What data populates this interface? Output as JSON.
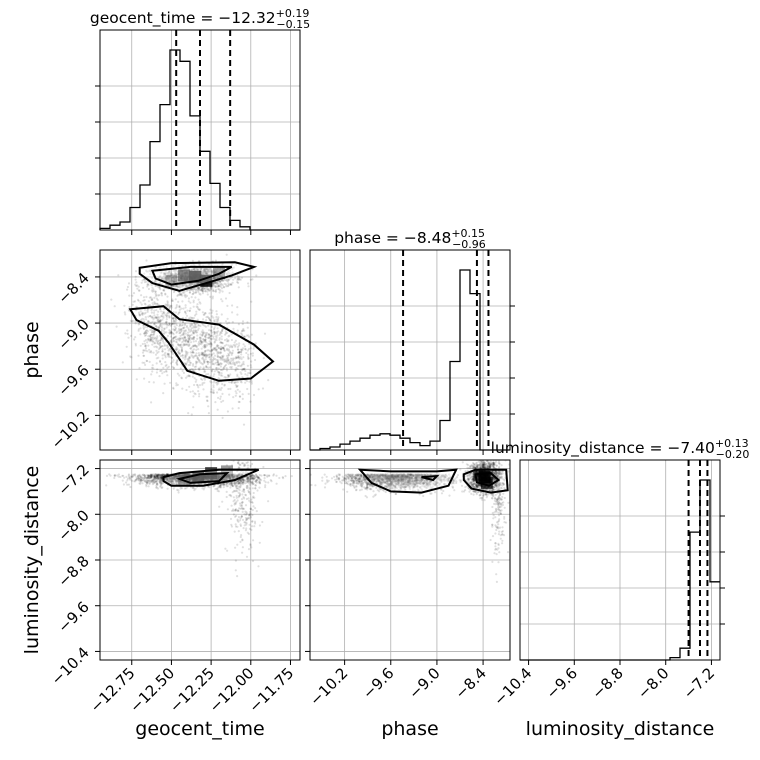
{
  "chart_data": {
    "type": "corner",
    "parameters": [
      {
        "name": "geocent_time",
        "range": [
          -12.95,
          -11.69
        ],
        "ticks": [
          -12.75,
          -12.5,
          -12.25,
          -12.0,
          -11.75
        ],
        "tick_labels": [
          "−12.75",
          "−12.50",
          "−12.25",
          "−12.00",
          "−11.75"
        ],
        "median": -12.32,
        "plus": 0.19,
        "minus": 0.15,
        "title_main": "geocent_time = −12.32",
        "title_plus": "+0.19",
        "title_minus": "−0.15",
        "quantiles": [
          -12.47,
          -12.32,
          -12.13
        ],
        "hist": {
          "edges_start": -12.95,
          "bin_width": 0.063,
          "counts": [
            1,
            3,
            5,
            14,
            28,
            55,
            78,
            112,
            105,
            71,
            49,
            29,
            14,
            6,
            2,
            0,
            0,
            0,
            0,
            0
          ]
        }
      },
      {
        "name": "phase",
        "range": [
          -10.65,
          -8.05
        ],
        "ticks": [
          -10.2,
          -9.6,
          -9.0,
          -8.4
        ],
        "tick_labels": [
          "−10.2",
          "−9.6",
          "−9.0",
          "−8.4"
        ],
        "median": -8.48,
        "plus": 0.15,
        "minus": 0.96,
        "title_main": "phase = −8.48",
        "title_plus": "+0.15",
        "title_minus": "−0.96",
        "quantiles": [
          -9.44,
          -8.48,
          -8.33
        ],
        "hist": {
          "edges_start": -10.65,
          "bin_width": 0.13,
          "counts": [
            0,
            1,
            2,
            4,
            6,
            8,
            10,
            11,
            10,
            8,
            5,
            3,
            6,
            20,
            60,
            122,
            106,
            0,
            0,
            0
          ]
        }
      },
      {
        "name": "luminosity_distance",
        "range": [
          -10.55,
          -7.05
        ],
        "ticks": [
          -10.4,
          -9.6,
          -8.8,
          -8.0,
          -7.2
        ],
        "tick_labels": [
          "−10.4",
          "−9.6",
          "−8.8",
          "−8.0",
          "−7.2"
        ],
        "median": -7.4,
        "plus": 0.13,
        "minus": 0.2,
        "title_main": "luminosity_distance = −7.40",
        "title_plus": "+0.13",
        "title_minus": "−0.20",
        "quantiles": [
          -7.6,
          -7.4,
          -7.27
        ],
        "hist": {
          "edges_start": -10.55,
          "bin_width": 0.175,
          "counts": [
            0,
            0,
            0,
            0,
            0,
            0,
            0,
            0,
            0,
            0,
            0,
            0,
            0,
            0,
            0,
            1,
            5,
            54,
            76,
            33
          ]
        }
      }
    ],
    "xlabels": [
      "geocent_time",
      "phase",
      "luminosity_distance"
    ],
    "ylabels": [
      "",
      "phase",
      "luminosity_distance"
    ],
    "grid": true
  }
}
